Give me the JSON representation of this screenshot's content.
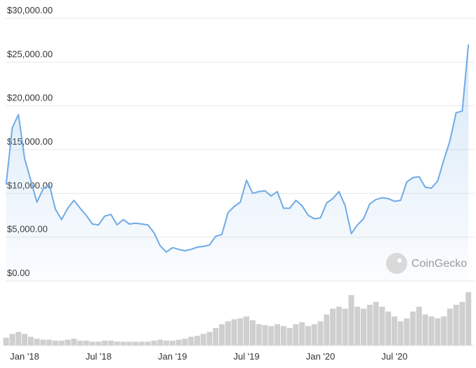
{
  "chart_data": {
    "type": "line",
    "watermark": "CoinGecko",
    "categories": [
      null,
      null,
      null,
      "Jan '18",
      null,
      null,
      null,
      null,
      null,
      null,
      null,
      null,
      null,
      null,
      null,
      "Jul '18",
      null,
      null,
      null,
      null,
      null,
      null,
      null,
      null,
      null,
      null,
      null,
      "Jan '19",
      null,
      null,
      null,
      null,
      null,
      null,
      null,
      null,
      null,
      null,
      null,
      "Jul '19",
      null,
      null,
      null,
      null,
      null,
      null,
      null,
      null,
      null,
      null,
      null,
      "Jan '20",
      null,
      null,
      null,
      null,
      null,
      null,
      null,
      null,
      null,
      null,
      null,
      "Jul '20",
      null,
      null,
      null,
      null,
      null,
      null,
      null,
      null,
      null,
      null,
      null,
      null
    ],
    "values": [
      11000,
      17500,
      19000,
      14000,
      11500,
      9000,
      10500,
      11000,
      8200,
      7000,
      8300,
      9200,
      8300,
      7500,
      6500,
      6400,
      7400,
      7600,
      6400,
      7000,
      6500,
      6600,
      6500,
      6400,
      5500,
      4000,
      3300,
      3800,
      3600,
      3450,
      3600,
      3850,
      3950,
      4100,
      5100,
      5300,
      7800,
      8500,
      9000,
      11500,
      10000,
      10200,
      10300,
      9700,
      10200,
      8300,
      8300,
      9200,
      8600,
      7500,
      7100,
      7200,
      8900,
      9400,
      10200,
      8600,
      5400,
      6400,
      7100,
      8800,
      9300,
      9500,
      9400,
      9100,
      9200,
      11300,
      11800,
      11900,
      10700,
      10600,
      11400,
      13800,
      16000,
      19200,
      19400,
      27000
    ],
    "color": "#6fabe6",
    "volume": {
      "color": "#cfcfcf",
      "values": [
        8,
        12,
        14,
        12,
        9,
        7,
        6,
        6,
        5,
        5,
        6,
        7,
        5,
        5,
        4,
        4,
        5,
        5,
        4,
        4,
        4,
        4,
        4,
        4,
        5,
        6,
        5,
        5,
        6,
        7,
        9,
        10,
        12,
        14,
        18,
        22,
        25,
        27,
        28,
        30,
        26,
        22,
        21,
        20,
        22,
        20,
        18,
        22,
        24,
        20,
        22,
        25,
        32,
        38,
        40,
        38,
        52,
        40,
        38,
        42,
        45,
        40,
        35,
        30,
        25,
        28,
        35,
        40,
        32,
        30,
        28,
        30,
        38,
        42,
        45,
        55
      ]
    },
    "ylim": [
      0,
      30000
    ],
    "yticks": [
      {
        "value": 0,
        "label": "$0.00"
      },
      {
        "value": 5000,
        "label": "$5,000.00"
      },
      {
        "value": 10000,
        "label": "$10,000.00"
      },
      {
        "value": 15000,
        "label": "$15,000.00"
      },
      {
        "value": 20000,
        "label": "$20,000.00"
      },
      {
        "value": 25000,
        "label": "$25,000.00"
      },
      {
        "value": 30000,
        "label": "$30,000.00"
      }
    ],
    "grid": true
  }
}
